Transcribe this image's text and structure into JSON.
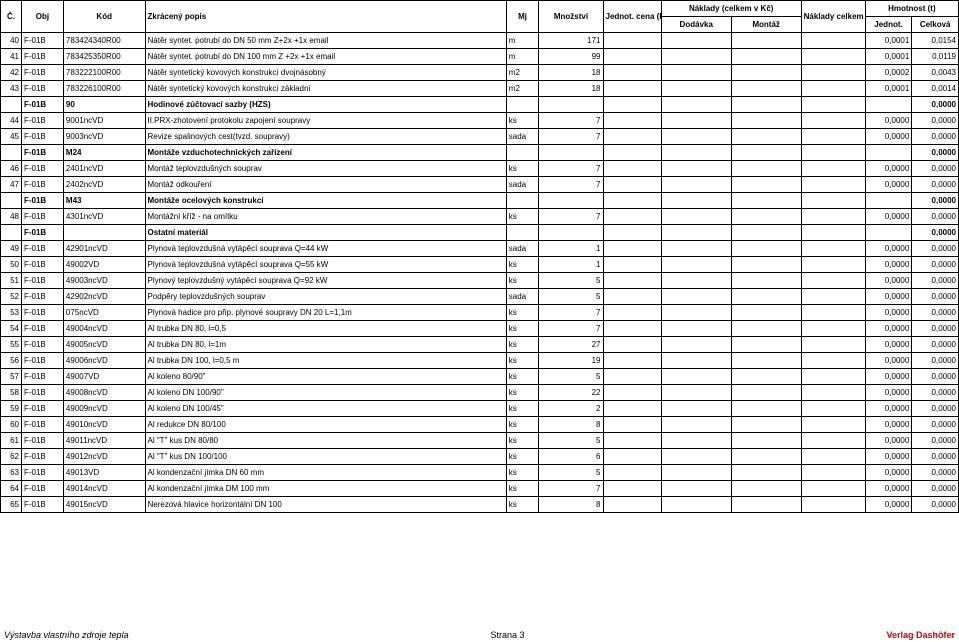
{
  "header": {
    "c": "Č.",
    "obj": "Obj",
    "kod": "Kód",
    "popis": "Zkrácený popis",
    "mj": "Mj",
    "mnozstvi": "Množství",
    "jednot_cena": "Jednot. cena (Kč)",
    "naklady_celkem": "Náklady (celkem v Kč)",
    "dodavka": "Dodávka",
    "montaz": "Montáž",
    "naklady_celkem_kc": "Náklady celkem (Kč)",
    "hmotnost": "Hmotnost (t)",
    "hm_jednot": "Jednot.",
    "hm_celkova": "Celková"
  },
  "rows": [
    {
      "c": "40",
      "obj": "F-01B",
      "kod": "783424340R00",
      "popis": "Nátěr syntet. potrubí do DN 50 mm  Z+2x +1x email",
      "mj": "m",
      "mnoz": "171",
      "hmj": "0,0001",
      "hmc": "0,0154",
      "bold": false
    },
    {
      "c": "41",
      "obj": "F-01B",
      "kod": "783425350R00",
      "popis": "Nátěr syntet. potrubí do DN 100 mm Z +2x +1x email",
      "mj": "m",
      "mnoz": "99",
      "hmj": "0,0001",
      "hmc": "0,0119",
      "bold": false
    },
    {
      "c": "42",
      "obj": "F-01B",
      "kod": "783222100R00",
      "popis": "Nátěr syntetický kovových konstrukcí dvojnásobný",
      "mj": "m2",
      "mnoz": "18",
      "hmj": "0,0002",
      "hmc": "0,0043",
      "bold": false
    },
    {
      "c": "43",
      "obj": "F-01B",
      "kod": "783226100R00",
      "popis": "Nátěr syntetický kovových konstrukcí základní",
      "mj": "m2",
      "mnoz": "18",
      "hmj": "0,0001",
      "hmc": "0,0014",
      "bold": false
    },
    {
      "c": "",
      "obj": "F-01B",
      "kod": "90",
      "popis": "Hodinové zúčtovací sazby (HZS)",
      "mj": "",
      "mnoz": "",
      "hmj": "",
      "hmc": "0,0000",
      "bold": true
    },
    {
      "c": "44",
      "obj": "F-01B",
      "kod": "9001ncVD",
      "popis": "II.PRX-zhotovení protokolu zapojení soupravy",
      "mj": "ks",
      "mnoz": "7",
      "hmj": "0,0000",
      "hmc": "0,0000",
      "bold": false
    },
    {
      "c": "45",
      "obj": "F-01B",
      "kod": "9003ncVD",
      "popis": "Revize spalinových cest(tvzd. soupravy)",
      "mj": "sada",
      "mnoz": "7",
      "hmj": "0,0000",
      "hmc": "0,0000",
      "bold": false
    },
    {
      "c": "",
      "obj": "F-01B",
      "kod": "M24",
      "popis": "Montáže vzduchotechnických zařízení",
      "mj": "",
      "mnoz": "",
      "hmj": "",
      "hmc": "0,0000",
      "bold": true
    },
    {
      "c": "46",
      "obj": "F-01B",
      "kod": "2401ncVD",
      "popis": "Montáž teplovzdušných souprav",
      "mj": "ks",
      "mnoz": "7",
      "hmj": "0,0000",
      "hmc": "0,0000",
      "bold": false
    },
    {
      "c": "47",
      "obj": "F-01B",
      "kod": "2402ncVD",
      "popis": "Montáž odkouření",
      "mj": "sada",
      "mnoz": "7",
      "hmj": "0,0000",
      "hmc": "0,0000",
      "bold": false
    },
    {
      "c": "",
      "obj": "F-01B",
      "kod": "M43",
      "popis": "Montáže ocelových konstrukcí",
      "mj": "",
      "mnoz": "",
      "hmj": "",
      "hmc": "0,0000",
      "bold": true
    },
    {
      "c": "48",
      "obj": "F-01B",
      "kod": "4301ncVD",
      "popis": "Montážní kříž - na omítku",
      "mj": "ks",
      "mnoz": "7",
      "hmj": "0,0000",
      "hmc": "0,0000",
      "bold": false
    },
    {
      "c": "",
      "obj": "F-01B",
      "kod": "",
      "popis": "Ostatní materiál",
      "mj": "",
      "mnoz": "",
      "hmj": "",
      "hmc": "0,0000",
      "bold": true
    },
    {
      "c": "49",
      "obj": "F-01B",
      "kod": "42901ncVD",
      "popis": "Plynová teplovzdušná vytápěcí souprava Q=44 kW",
      "mj": "sada",
      "mnoz": "1",
      "hmj": "0,0000",
      "hmc": "0,0000",
      "bold": false
    },
    {
      "c": "50",
      "obj": "F-01B",
      "kod": "49002VD",
      "popis": "Plynová teplovzdušná vytápěcí souprava Q=55 kW",
      "mj": "ks",
      "mnoz": "1",
      "hmj": "0,0000",
      "hmc": "0,0000",
      "bold": false
    },
    {
      "c": "51",
      "obj": "F-01B",
      "kod": "49003ncVD",
      "popis": "Plynový teplovzdušný vytápěcí souprava Q=92 kW",
      "mj": "ks",
      "mnoz": "5",
      "hmj": "0,0000",
      "hmc": "0,0000",
      "bold": false
    },
    {
      "c": "52",
      "obj": "F-01B",
      "kod": "42902ncVD",
      "popis": "Podpěry teplovzdušných souprav",
      "mj": "sada",
      "mnoz": "5",
      "hmj": "0,0000",
      "hmc": "0,0000",
      "bold": false
    },
    {
      "c": "53",
      "obj": "F-01B",
      "kod": "075ncVD",
      "popis": "Plynová hadice pro přip. plynové soupravy DN 20 L=1,1m",
      "mj": "ks",
      "mnoz": "7",
      "hmj": "0,0000",
      "hmc": "0,0000",
      "bold": false
    },
    {
      "c": "54",
      "obj": "F-01B",
      "kod": "49004ncVD",
      "popis": "Al trubka DN 80, l=0,5",
      "mj": "ks",
      "mnoz": "7",
      "hmj": "0,0000",
      "hmc": "0,0000",
      "bold": false
    },
    {
      "c": "55",
      "obj": "F-01B",
      "kod": "49005ncVD",
      "popis": "Al trubka DN 80, l=1m",
      "mj": "ks",
      "mnoz": "27",
      "hmj": "0,0000",
      "hmc": "0,0000",
      "bold": false
    },
    {
      "c": "56",
      "obj": "F-01B",
      "kod": "49006ncVD",
      "popis": "Al trubka DN 100, l=0,5 m",
      "mj": "ks",
      "mnoz": "19",
      "hmj": "0,0000",
      "hmc": "0,0000",
      "bold": false
    },
    {
      "c": "57",
      "obj": "F-01B",
      "kod": "49007VD",
      "popis": "Al koleno 80/90\"",
      "mj": "ks",
      "mnoz": "5",
      "hmj": "0,0000",
      "hmc": "0,0000",
      "bold": false
    },
    {
      "c": "58",
      "obj": "F-01B",
      "kod": "49008ncVD",
      "popis": "Al koleno DN 100/90\"",
      "mj": "ks",
      "mnoz": "22",
      "hmj": "0,0000",
      "hmc": "0,0000",
      "bold": false
    },
    {
      "c": "59",
      "obj": "F-01B",
      "kod": "49009ncVD",
      "popis": "Al koleno DN 100/45\"",
      "mj": "ks",
      "mnoz": "2",
      "hmj": "0,0000",
      "hmc": "0,0000",
      "bold": false
    },
    {
      "c": "60",
      "obj": "F-01B",
      "kod": "49010ncVD",
      "popis": "Al redukce DN 80/100",
      "mj": "ks",
      "mnoz": "8",
      "hmj": "0,0000",
      "hmc": "0,0000",
      "bold": false
    },
    {
      "c": "61",
      "obj": "F-01B",
      "kod": "49011ncVD",
      "popis": "Al \"T\" kus DN 80/80",
      "mj": "ks",
      "mnoz": "5",
      "hmj": "0,0000",
      "hmc": "0,0000",
      "bold": false
    },
    {
      "c": "62",
      "obj": "F-01B",
      "kod": "49012ncVD",
      "popis": "Al \"T\" kus DN 100/100",
      "mj": "ks",
      "mnoz": "6",
      "hmj": "0,0000",
      "hmc": "0,0000",
      "bold": false
    },
    {
      "c": "63",
      "obj": "F-01B",
      "kod": "49013VD",
      "popis": "Al kondenzační jímka DN 60 mm",
      "mj": "ks",
      "mnoz": "5",
      "hmj": "0,0000",
      "hmc": "0,0000",
      "bold": false
    },
    {
      "c": "64",
      "obj": "F-01B",
      "kod": "49014ncVD",
      "popis": "Al kondenzační jímka DM 100 mm",
      "mj": "ks",
      "mnoz": "7",
      "hmj": "0,0000",
      "hmc": "0,0000",
      "bold": false
    },
    {
      "c": "65",
      "obj": "F-01B",
      "kod": "49015ncVD",
      "popis": "Nerezová hlavice horizontální DN 100",
      "mj": "ks",
      "mnoz": "8",
      "hmj": "0,0000",
      "hmc": "0,0000",
      "bold": false
    }
  ],
  "footer": {
    "left": "Výstavba vlastního zdroje tepla",
    "center": "Strana 3",
    "right": "Verlag Dashöfer"
  }
}
